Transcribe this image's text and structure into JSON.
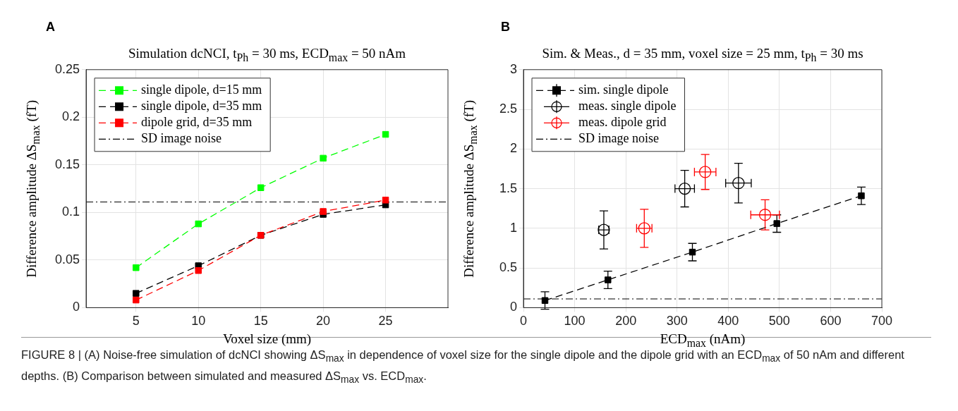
{
  "chart_data": [
    {
      "type": "line",
      "title": "Simulation dcNCI, t$_{Ph}$ = 30 ms, ECD$_{max}$ = 50 nAm",
      "xlabel": "Voxel size (mm)",
      "ylabel": "Difference amplitude ΔS$_{max}$ (fT)",
      "x": [
        5,
        10,
        15,
        20,
        25
      ],
      "series": [
        {
          "name": "single dipole, d=15 mm",
          "color": "#00ff00",
          "values": [
            0.042,
            0.088,
            0.126,
            0.157,
            0.182
          ]
        },
        {
          "name": "single dipole, d=35 mm",
          "color": "#000000",
          "values": [
            0.015,
            0.044,
            0.076,
            0.098,
            0.108
          ]
        },
        {
          "name": "dipole grid, d=35 mm",
          "color": "#ff0000",
          "values": [
            0.008,
            0.039,
            0.076,
            0.101,
            0.113
          ]
        }
      ],
      "ref_lines": [
        {
          "axis": "y",
          "value": 0.111,
          "label": "SD image noise",
          "color": "#000000",
          "line_style": "dashdot"
        }
      ],
      "xlim": [
        1,
        30
      ],
      "xticks": [
        5,
        10,
        15,
        20,
        25
      ],
      "ylim": [
        0,
        0.25
      ],
      "yticks": [
        0,
        0.05,
        0.1,
        0.15,
        0.2,
        0.25
      ],
      "grid": true,
      "legend": "top left",
      "marker": "square",
      "line_style": "dashed",
      "annotations": [
        "A",
        "FIGURE 8 | (A) Noise-free simulation of dcNCI showing ΔS$_{max}$ in dependence of voxel size for the single dipole and the dipole grid with an ECD$_{max}$ of 50 nAm and different depths. (B) Comparison between simulated and measured ΔS$_{max}$ vs. ECD$_{max}$."
      ]
    },
    {
      "type": "scatter",
      "title": "Sim. & Meas., d = 35 mm, voxel size = 25 mm, t$_{Ph}$ = 30 ms",
      "xlabel": "ECD$_{max}$ (nAm)",
      "ylabel": "Difference amplitude ΔS$_{max}$ (fT)",
      "series": [
        {
          "name": "sim. single dipole",
          "type": "line",
          "color": "#000000",
          "marker": "square",
          "line_style": "dashed",
          "x": [
            42,
            165,
            330,
            495,
            660
          ],
          "values": [
            0.09,
            0.35,
            0.7,
            1.06,
            1.41
          ],
          "errors": [
            0.11,
            0.11,
            0.11,
            0.11,
            0.11
          ]
        },
        {
          "name": "meas. single dipole",
          "color": "#000000",
          "marker": "circle",
          "x": [
            157,
            315,
            420
          ],
          "values": [
            0.98,
            1.5,
            1.57
          ],
          "errors": [
            0.24,
            0.23,
            0.25
          ],
          "xerrors": [
            10,
            19,
            25
          ]
        },
        {
          "name": "meas. dipole grid",
          "color": "#ff0000",
          "marker": "circle",
          "x": [
            236,
            355,
            472
          ],
          "values": [
            1.0,
            1.71,
            1.17
          ],
          "errors": [
            0.24,
            0.22,
            0.19
          ],
          "xerrors": [
            15,
            21,
            28
          ]
        }
      ],
      "ref_lines": [
        {
          "axis": "y",
          "value": 0.11,
          "label": "SD image noise",
          "color": "#000000",
          "line_style": "dashdot"
        }
      ],
      "xlim": [
        0,
        700
      ],
      "xticks": [
        0,
        100,
        200,
        300,
        400,
        500,
        600,
        700
      ],
      "ylim": [
        0,
        3
      ],
      "yticks": [
        0,
        0.5,
        1,
        1.5,
        2,
        2.5,
        3
      ],
      "grid": true,
      "legend": "top left",
      "annotations": [
        "B"
      ]
    }
  ]
}
